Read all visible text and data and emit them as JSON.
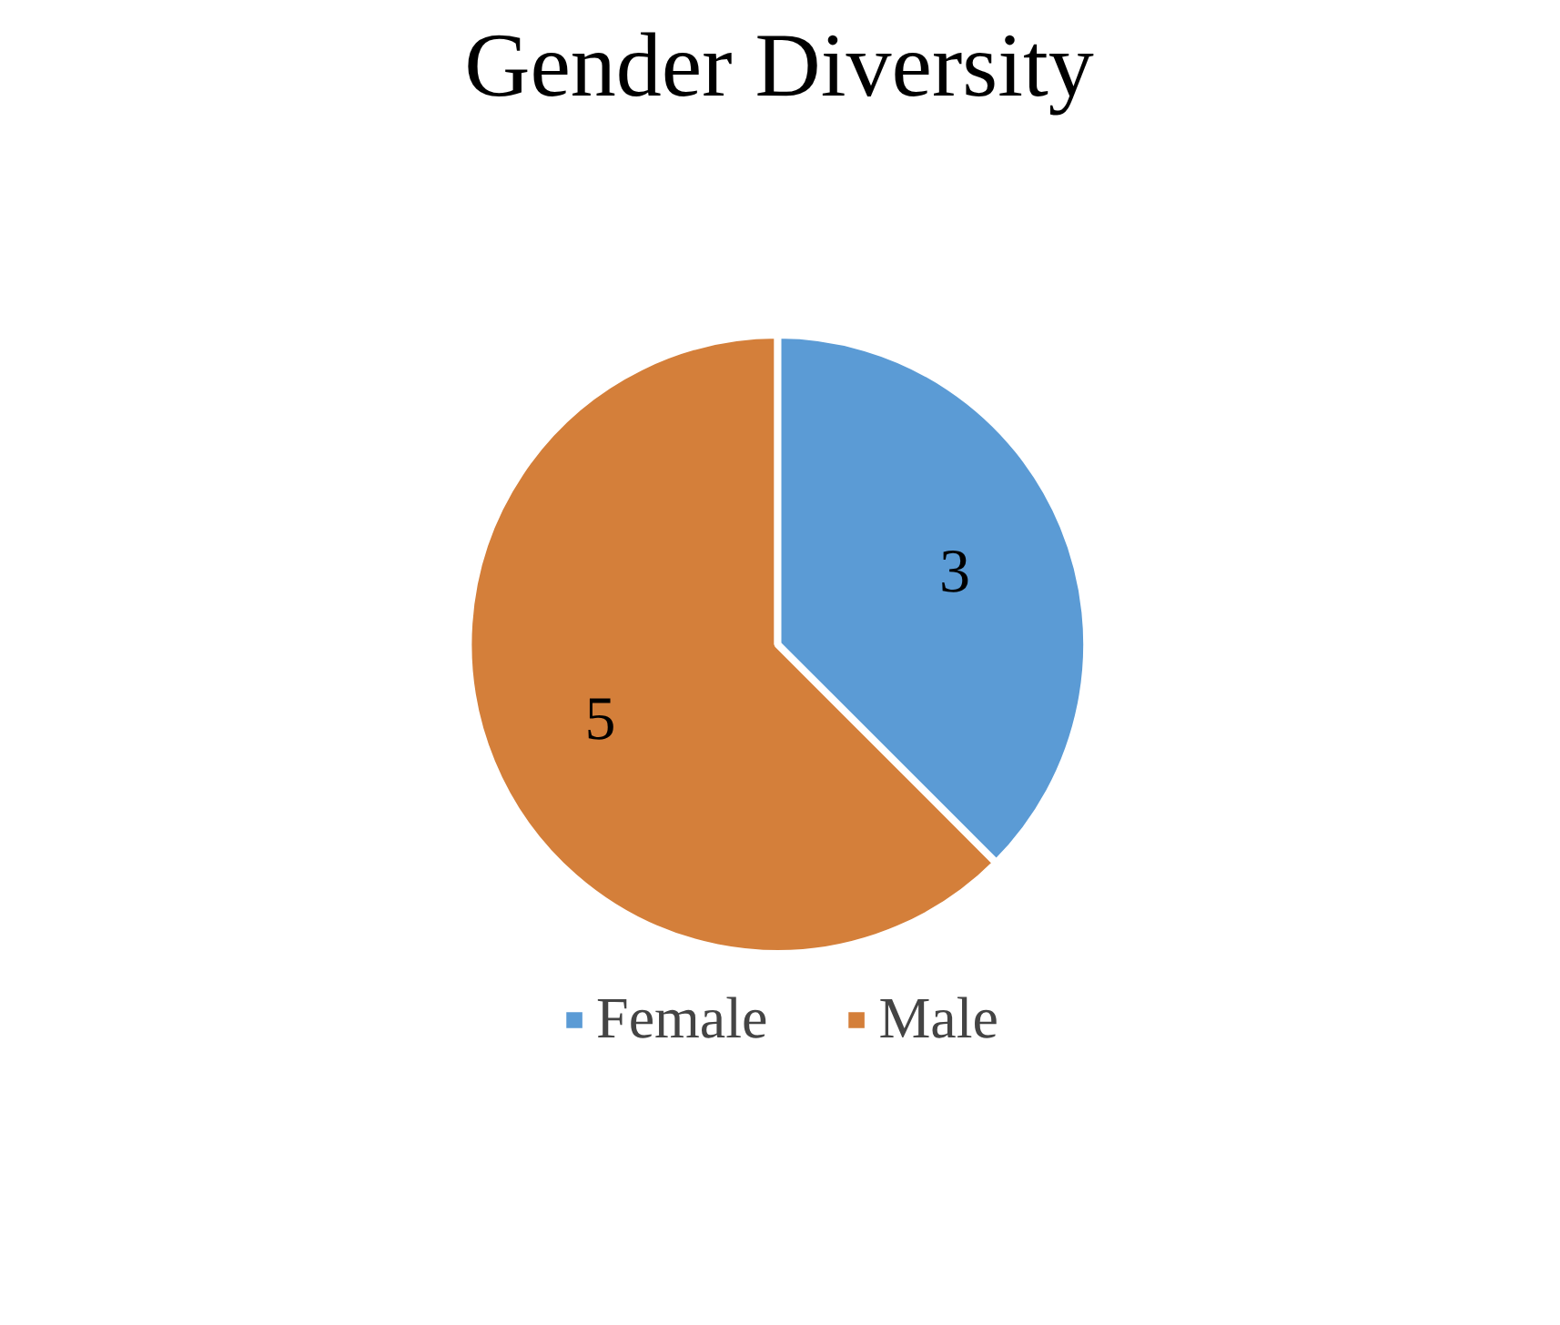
{
  "chart_data": {
    "type": "pie",
    "title": "Gender Diversity",
    "categories": [
      "Female",
      "Male"
    ],
    "values": [
      3,
      5
    ],
    "colors": [
      "#5b9bd5",
      "#d47f3a"
    ],
    "data_labels": true,
    "legend": "bottom"
  }
}
